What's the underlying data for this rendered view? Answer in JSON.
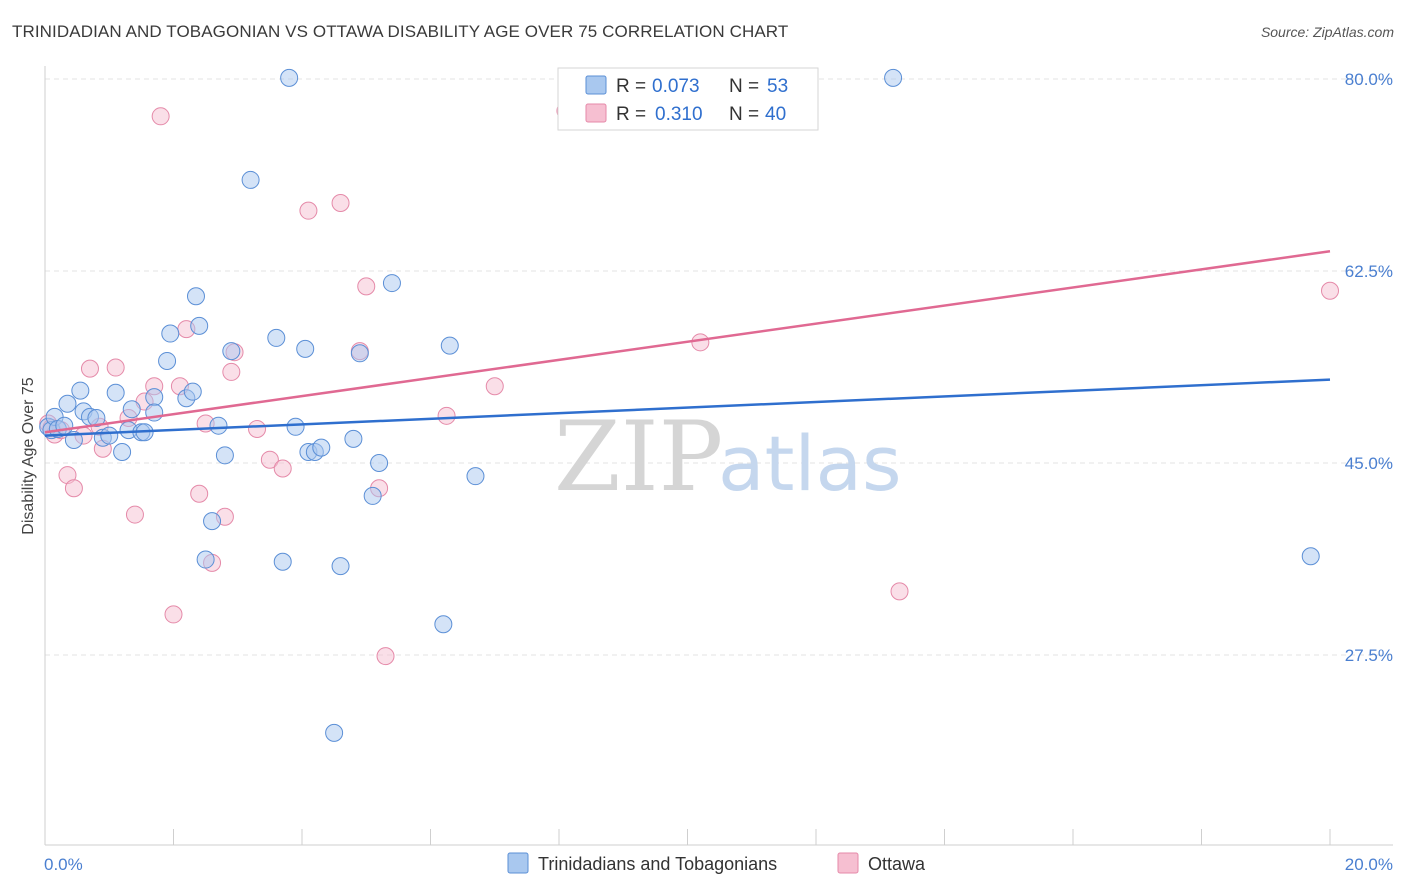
{
  "header": {
    "title": "TRINIDADIAN AND TOBAGONIAN VS OTTAWA DISABILITY AGE OVER 75 CORRELATION CHART",
    "source": "Source: ZipAtlas.com"
  },
  "watermark": {
    "zip": "ZIP",
    "atlas": "atlas"
  },
  "colors": {
    "blue_fill": "#a9c8ef",
    "blue_stroke": "#5b8fd6",
    "blue_line": "#2f6fce",
    "pink_fill": "#f6bfd1",
    "pink_stroke": "#e58aa9",
    "pink_line": "#e06992",
    "grid": "#e3e3e3",
    "axis_label": "#4a7fd0"
  },
  "legend": {
    "rows": [
      {
        "r_label": "R = ",
        "r_value": "0.073",
        "n_label": "N = ",
        "n_value": "53"
      },
      {
        "r_label": "R = ",
        "r_value": "0.310",
        "n_label": "N = ",
        "n_value": "40"
      }
    ]
  },
  "bottom_legend": [
    "Trinidadians and Tobagonians",
    "Ottawa"
  ],
  "chart_data": {
    "type": "scatter",
    "title": "TRINIDADIAN AND TOBAGONIAN VS OTTAWA DISABILITY AGE OVER 75 CORRELATION CHART",
    "xlabel": "",
    "ylabel": "Disability Age Over 75",
    "xlim": [
      0,
      20
    ],
    "ylim": [
      10,
      83
    ],
    "x_tick_labels": [
      "0.0%",
      "20.0%"
    ],
    "y_ticks": [
      27.5,
      45.0,
      62.5,
      80.0
    ],
    "y_tick_labels": [
      "27.5%",
      "45.0%",
      "62.5%",
      "80.0%"
    ],
    "grid": true,
    "legend_position": "top-center",
    "series": [
      {
        "name": "Trinidadians and Tobagonians",
        "r": 0.073,
        "n": 53,
        "trend": {
          "x": [
            0,
            20
          ],
          "y": [
            47.5,
            52.6
          ]
        },
        "points": [
          [
            0.05,
            48.3
          ],
          [
            0.1,
            48.0
          ],
          [
            0.15,
            49.2
          ],
          [
            0.2,
            48.1
          ],
          [
            0.3,
            48.4
          ],
          [
            0.35,
            50.4
          ],
          [
            0.45,
            47.1
          ],
          [
            0.55,
            51.6
          ],
          [
            0.6,
            49.7
          ],
          [
            0.7,
            49.2
          ],
          [
            0.8,
            49.1
          ],
          [
            0.9,
            47.3
          ],
          [
            1.0,
            47.5
          ],
          [
            1.1,
            51.4
          ],
          [
            1.2,
            46.0
          ],
          [
            1.3,
            48.0
          ],
          [
            1.35,
            49.9
          ],
          [
            1.5,
            47.8
          ],
          [
            1.55,
            47.8
          ],
          [
            1.7,
            51.0
          ],
          [
            1.7,
            49.6
          ],
          [
            1.9,
            54.3
          ],
          [
            1.95,
            56.8
          ],
          [
            2.2,
            50.9
          ],
          [
            2.3,
            51.5
          ],
          [
            2.35,
            60.2
          ],
          [
            2.4,
            57.5
          ],
          [
            2.5,
            36.2
          ],
          [
            2.6,
            39.7
          ],
          [
            2.7,
            48.4
          ],
          [
            2.8,
            45.7
          ],
          [
            2.9,
            55.2
          ],
          [
            3.2,
            70.8
          ],
          [
            3.6,
            56.4
          ],
          [
            3.7,
            36.0
          ],
          [
            3.8,
            80.1
          ],
          [
            3.9,
            48.3
          ],
          [
            4.05,
            55.4
          ],
          [
            4.1,
            46.0
          ],
          [
            4.2,
            46.0
          ],
          [
            4.3,
            46.4
          ],
          [
            4.5,
            20.4
          ],
          [
            4.6,
            35.6
          ],
          [
            4.8,
            47.2
          ],
          [
            4.9,
            55.0
          ],
          [
            5.1,
            42.0
          ],
          [
            5.2,
            45.0
          ],
          [
            5.4,
            61.4
          ],
          [
            6.2,
            30.3
          ],
          [
            6.3,
            55.7
          ],
          [
            6.7,
            43.8
          ],
          [
            13.2,
            80.1
          ],
          [
            19.7,
            36.5
          ]
        ]
      },
      {
        "name": "Ottawa",
        "r": 0.31,
        "n": 40,
        "trend": {
          "x": [
            0,
            20
          ],
          "y": [
            47.8,
            64.3
          ]
        },
        "points": [
          [
            0.05,
            48.6
          ],
          [
            0.1,
            48.2
          ],
          [
            0.15,
            47.6
          ],
          [
            0.25,
            48.0
          ],
          [
            0.35,
            43.9
          ],
          [
            0.45,
            42.7
          ],
          [
            0.6,
            47.5
          ],
          [
            0.7,
            53.6
          ],
          [
            0.85,
            48.3
          ],
          [
            0.9,
            46.3
          ],
          [
            1.1,
            53.7
          ],
          [
            1.3,
            49.1
          ],
          [
            1.4,
            40.3
          ],
          [
            1.55,
            50.6
          ],
          [
            1.7,
            52.0
          ],
          [
            1.8,
            76.6
          ],
          [
            2.0,
            31.2
          ],
          [
            2.1,
            52.0
          ],
          [
            2.2,
            57.2
          ],
          [
            2.4,
            42.2
          ],
          [
            2.5,
            48.6
          ],
          [
            2.6,
            35.9
          ],
          [
            2.8,
            40.1
          ],
          [
            2.9,
            53.3
          ],
          [
            2.95,
            55.1
          ],
          [
            3.3,
            48.1
          ],
          [
            3.5,
            45.3
          ],
          [
            3.7,
            44.5
          ],
          [
            4.1,
            68.0
          ],
          [
            4.6,
            68.7
          ],
          [
            4.9,
            55.2
          ],
          [
            5.0,
            61.1
          ],
          [
            5.2,
            42.7
          ],
          [
            5.3,
            27.4
          ],
          [
            6.25,
            49.3
          ],
          [
            7.0,
            52.0
          ],
          [
            8.1,
            77.1
          ],
          [
            10.2,
            56.0
          ],
          [
            13.3,
            33.3
          ],
          [
            20.0,
            60.7
          ]
        ]
      }
    ]
  }
}
